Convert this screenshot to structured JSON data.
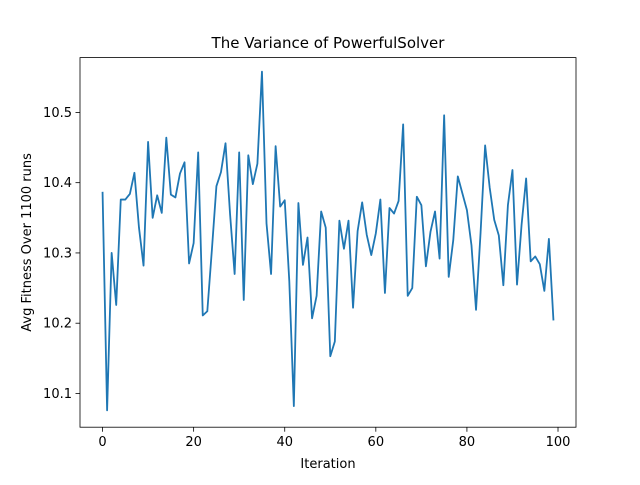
{
  "chart_data": {
    "type": "line",
    "title": "The Variance of PowerfulSolver",
    "xlabel": "Iteration",
    "ylabel": "Avg Fitness Over 1100 runs",
    "xlim": [
      -4.95,
      103.95
    ],
    "ylim": [
      10.052,
      10.578
    ],
    "xticks": [
      0,
      20,
      40,
      60,
      80,
      100
    ],
    "yticks": [
      10.1,
      10.2,
      10.3,
      10.4,
      10.5
    ],
    "xtick_labels": [
      "0",
      "20",
      "40",
      "60",
      "80",
      "100"
    ],
    "ytick_labels": [
      "10.1",
      "10.2",
      "10.3",
      "10.4",
      "10.5"
    ],
    "grid": false,
    "line_color": "#1f77b4",
    "series": [
      {
        "x": [
          0,
          1,
          2,
          3,
          4,
          5,
          6,
          7,
          8,
          9,
          10,
          11,
          12,
          13,
          14,
          15,
          16,
          17,
          18,
          19,
          20,
          21,
          22,
          23,
          24,
          25,
          26,
          27,
          28,
          29,
          30,
          31,
          32,
          33,
          34,
          35,
          36,
          37,
          38,
          39,
          40,
          41,
          42,
          43,
          44,
          45,
          46,
          47,
          48,
          49,
          50,
          51,
          52,
          53,
          54,
          55,
          56,
          57,
          58,
          59,
          60,
          61,
          62,
          63,
          64,
          65,
          66,
          67,
          68,
          69,
          70,
          71,
          72,
          73,
          74,
          75,
          76,
          77,
          78,
          79,
          80,
          81,
          82,
          83,
          84,
          85,
          86,
          87,
          88,
          89,
          90,
          91,
          92,
          93,
          94,
          95,
          96,
          97,
          98,
          99
        ],
        "values": [
          10.387,
          10.076,
          10.3,
          10.226,
          10.376,
          10.376,
          10.384,
          10.414,
          10.336,
          10.282,
          10.458,
          10.35,
          10.382,
          10.357,
          10.464,
          10.383,
          10.379,
          10.413,
          10.429,
          10.285,
          10.314,
          10.443,
          10.211,
          10.217,
          10.304,
          10.395,
          10.415,
          10.456,
          10.355,
          10.27,
          10.443,
          10.233,
          10.439,
          10.398,
          10.427,
          10.558,
          10.342,
          10.27,
          10.452,
          10.366,
          10.375,
          10.26,
          10.082,
          10.371,
          10.283,
          10.322,
          10.207,
          10.239,
          10.359,
          10.336,
          10.153,
          10.174,
          10.346,
          10.306,
          10.346,
          10.222,
          10.331,
          10.372,
          10.326,
          10.297,
          10.328,
          10.376,
          10.243,
          10.364,
          10.356,
          10.374,
          10.483,
          10.239,
          10.25,
          10.38,
          10.368,
          10.281,
          10.33,
          10.359,
          10.292,
          10.496,
          10.266,
          10.318,
          10.409,
          10.385,
          10.361,
          10.311,
          10.219,
          10.329,
          10.453,
          10.393,
          10.347,
          10.325,
          10.254,
          10.368,
          10.418,
          10.255,
          10.34,
          10.406,
          10.288,
          10.295,
          10.284,
          10.246,
          10.32,
          10.204
        ]
      }
    ]
  }
}
